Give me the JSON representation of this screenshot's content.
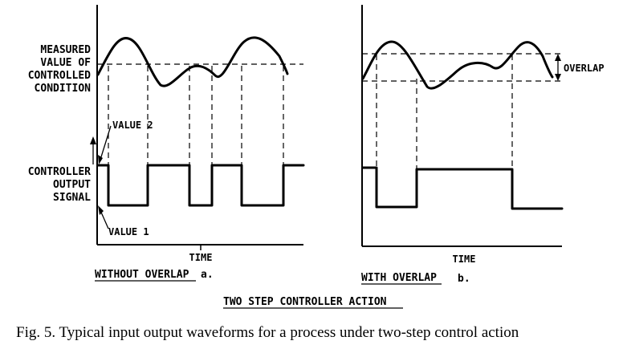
{
  "panel_a": {
    "y_label_top": [
      "MEASURED",
      "VALUE OF",
      "CONTROLLED",
      "CONDITION"
    ],
    "y_label_bottom": [
      "CONTROLLER",
      "OUTPUT",
      "SIGNAL"
    ],
    "value_2_label": "VALUE 2",
    "value_1_label": "VALUE 1",
    "x_label": "TIME",
    "subtitle": "WITHOUT OVERLAP",
    "letter": "a."
  },
  "panel_b": {
    "x_label": "TIME",
    "subtitle": "WITH OVERLAP",
    "letter": "b.",
    "overlap_label": "OVERLAP"
  },
  "figure_title": "TWO STEP CONTROLLER ACTION",
  "caption": "Fig. 5. Typical input output waveforms for a process under two-step control action"
}
